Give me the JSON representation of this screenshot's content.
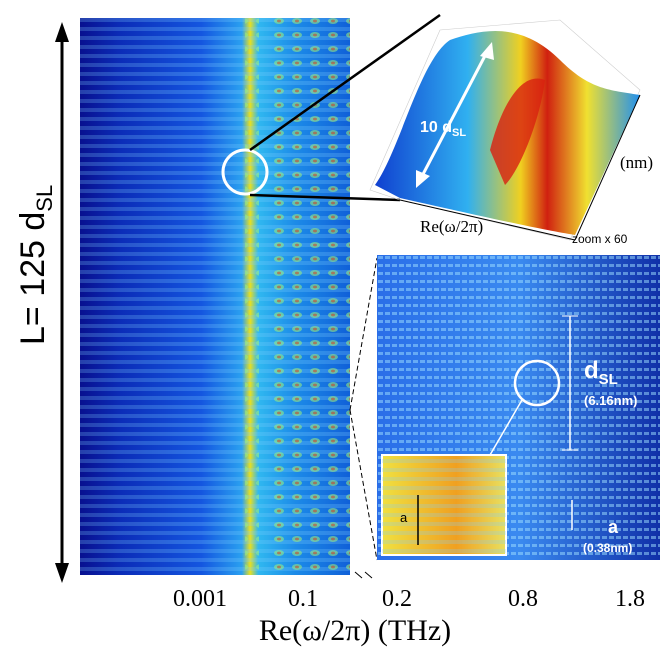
{
  "figure": {
    "left_axis_label": {
      "main": "L= 125 d",
      "sub": "SL"
    },
    "inset_3d": {
      "height_label": {
        "main": "10 d",
        "sub": "SL"
      },
      "depth_label": "(nm)",
      "x_label": "Re(ω/2π)",
      "zoom_label": "zoom x 60"
    },
    "zoom_panel": {
      "period_label": {
        "main": "d",
        "sub": "SL"
      },
      "period_value": "(6.16nm)",
      "lattice_label": "a",
      "lattice_value": "(0.38nm)",
      "inset_label": "a"
    },
    "x_ticks": [
      "0.001",
      "0.1",
      "0.2",
      "0.8",
      "1.8"
    ],
    "x_axis_label": "Re(ω/2π) (THz)"
  }
}
